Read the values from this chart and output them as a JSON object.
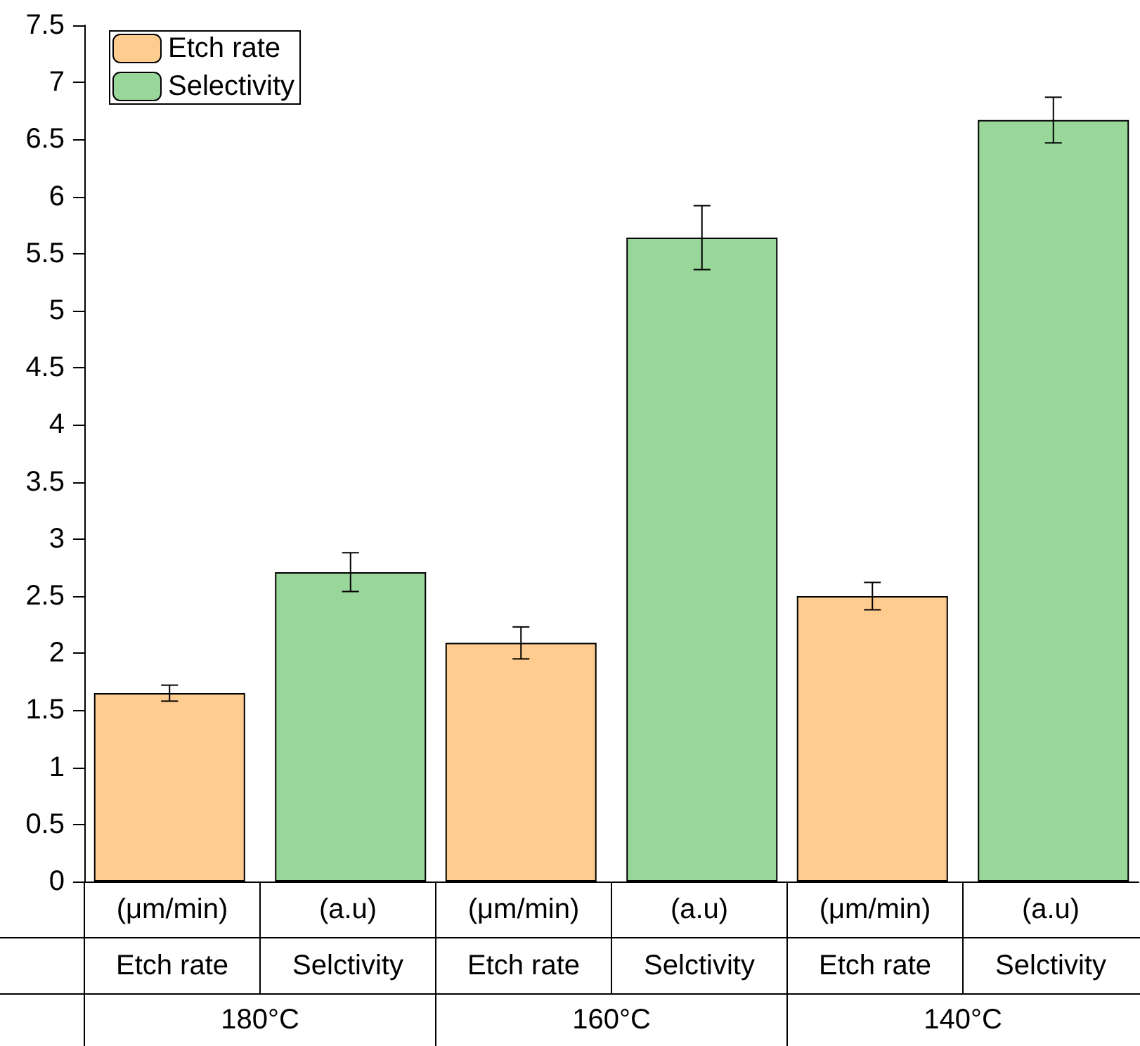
{
  "chart_data": {
    "type": "bar",
    "categories": [
      "180°C",
      "160°C",
      "140°C"
    ],
    "series": [
      {
        "name": "Etch rate",
        "color": "#ffcc90",
        "values": [
          1.65,
          2.09,
          2.5
        ],
        "errors": [
          0.07,
          0.14,
          0.12
        ]
      },
      {
        "name": "Selectivity",
        "color": "#98d69a",
        "values": [
          2.71,
          5.64,
          6.67
        ],
        "errors": [
          0.17,
          0.28,
          0.2
        ]
      }
    ],
    "annotations": [
      "(μm/min)",
      "(a.u)",
      "(μm/min)",
      "(a.u)",
      "(μm/min)",
      "(a.u)",
      "Etch rate",
      "Selctivity",
      "Etch rate",
      "Selctivity",
      "Etch rate",
      "Selctivity"
    ],
    "ylim": [
      0,
      7.5
    ],
    "yticks": [
      0,
      0.5,
      1,
      1.5,
      2,
      2.5,
      3,
      3.5,
      4,
      4.5,
      5,
      5.5,
      6,
      6.5,
      7,
      7.5
    ],
    "grid": false,
    "legend": "top left"
  }
}
